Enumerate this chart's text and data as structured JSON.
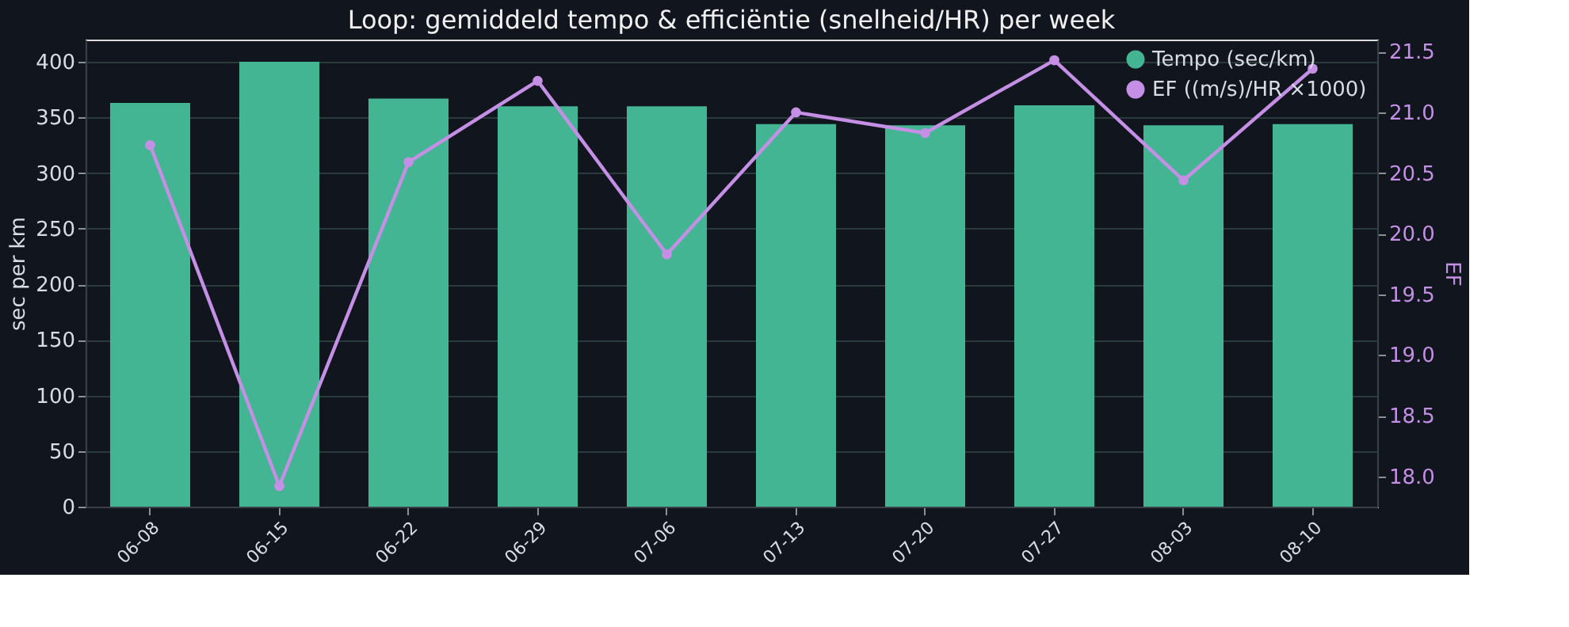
{
  "chart_data": {
    "type": "bar",
    "title": "Loop: gemiddeld tempo & efficiëntie (snelheid/HR) per week",
    "xlabel": null,
    "ylabel": "sec per km",
    "y2label": "EF",
    "categories": [
      "06-08",
      "06-15",
      "06-22",
      "06-29",
      "07-06",
      "07-13",
      "07-20",
      "07-27",
      "08-03",
      "08-10"
    ],
    "series": [
      {
        "name": "Tempo (sec/km)",
        "color": "#44b592",
        "values": [
          363,
          400,
          367,
          360,
          360,
          344,
          343,
          361,
          343,
          344
        ]
      },
      {
        "name": "EF ((m/s)/HR ×1000)",
        "color": "#c58fe6",
        "type": "line",
        "axis": "y2",
        "marker": "circle",
        "line_style": "solid",
        "values": [
          20.73,
          17.92,
          20.59,
          21.26,
          19.83,
          21.0,
          20.83,
          21.43,
          20.44,
          21.36
        ]
      }
    ],
    "ylim": [
      0,
      420
    ],
    "yticks": [
      0,
      50,
      100,
      150,
      200,
      250,
      300,
      350,
      400
    ],
    "y2lim": [
      17.75,
      21.6
    ],
    "y2ticks": [
      {
        "value": 18,
        "label": "18.0"
      },
      18.5,
      {
        "value": 19,
        "label": "19.0"
      },
      19.5,
      {
        "value": 20,
        "label": "20.0"
      },
      20.5,
      {
        "value": 21,
        "label": "21.0"
      },
      21.5
    ],
    "grid": "y",
    "legend": "top right"
  }
}
